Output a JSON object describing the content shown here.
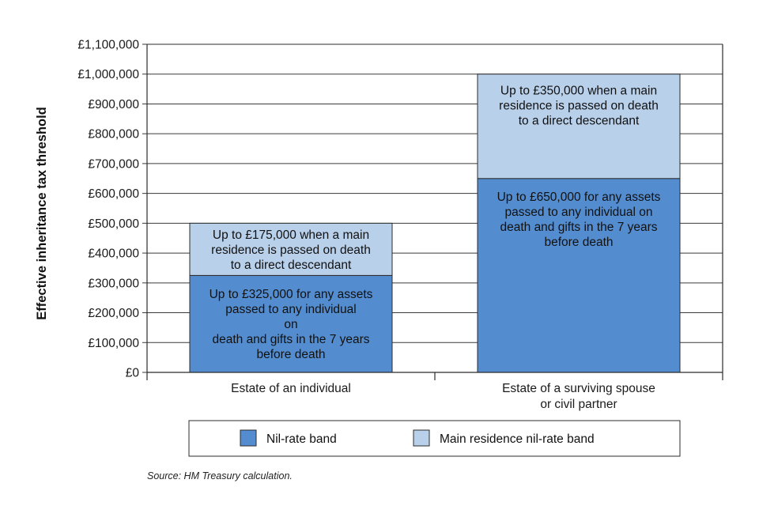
{
  "chart_data": {
    "type": "bar",
    "stacked": true,
    "categories": [
      [
        "Estate of an individual"
      ],
      [
        "Estate of a surviving spouse",
        "or civil partner"
      ]
    ],
    "series": [
      {
        "name": "Nil-rate band",
        "color": "#538dd0",
        "values": [
          325000,
          650000
        ],
        "annotations": [
          [
            "Up to £325,000 for any assets",
            "passed to any individual",
            "on",
            "death and gifts in the 7 years",
            "before death"
          ],
          [
            "Up to £650,000 for any assets",
            "passed to any individual on",
            "death and gifts in the 7 years",
            "before death"
          ]
        ]
      },
      {
        "name": "Main residence nil-rate band",
        "color": "#b9d0ea",
        "values": [
          175000,
          350000
        ],
        "annotations": [
          [
            "Up to £175,000 when a main",
            "residence is passed on death",
            "to a direct descendant"
          ],
          [
            "Up to £350,000 when a main",
            "residence is passed on death",
            "to a direct descendant"
          ]
        ]
      }
    ],
    "ylabel": "Effective inheritance tax threshold",
    "xlabel": "",
    "ylim": [
      0,
      1100000
    ],
    "yticks": [
      {
        "value": 0,
        "label": "£0"
      },
      {
        "value": 100000,
        "label": "£100,000"
      },
      {
        "value": 200000,
        "label": "£200,000"
      },
      {
        "value": 300000,
        "label": "£300,000"
      },
      {
        "value": 400000,
        "label": "£400,000"
      },
      {
        "value": 500000,
        "label": "£500,000"
      },
      {
        "value": 600000,
        "label": "£600,000"
      },
      {
        "value": 700000,
        "label": "£700,000"
      },
      {
        "value": 800000,
        "label": "£800,000"
      },
      {
        "value": 900000,
        "label": "£900,000"
      },
      {
        "value": 1000000,
        "label": "£1,000,000"
      },
      {
        "value": 1100000,
        "label": "£1,100,000"
      }
    ],
    "grid": true,
    "legend_position": "bottom",
    "source": "Source: HM Treasury calculation."
  }
}
